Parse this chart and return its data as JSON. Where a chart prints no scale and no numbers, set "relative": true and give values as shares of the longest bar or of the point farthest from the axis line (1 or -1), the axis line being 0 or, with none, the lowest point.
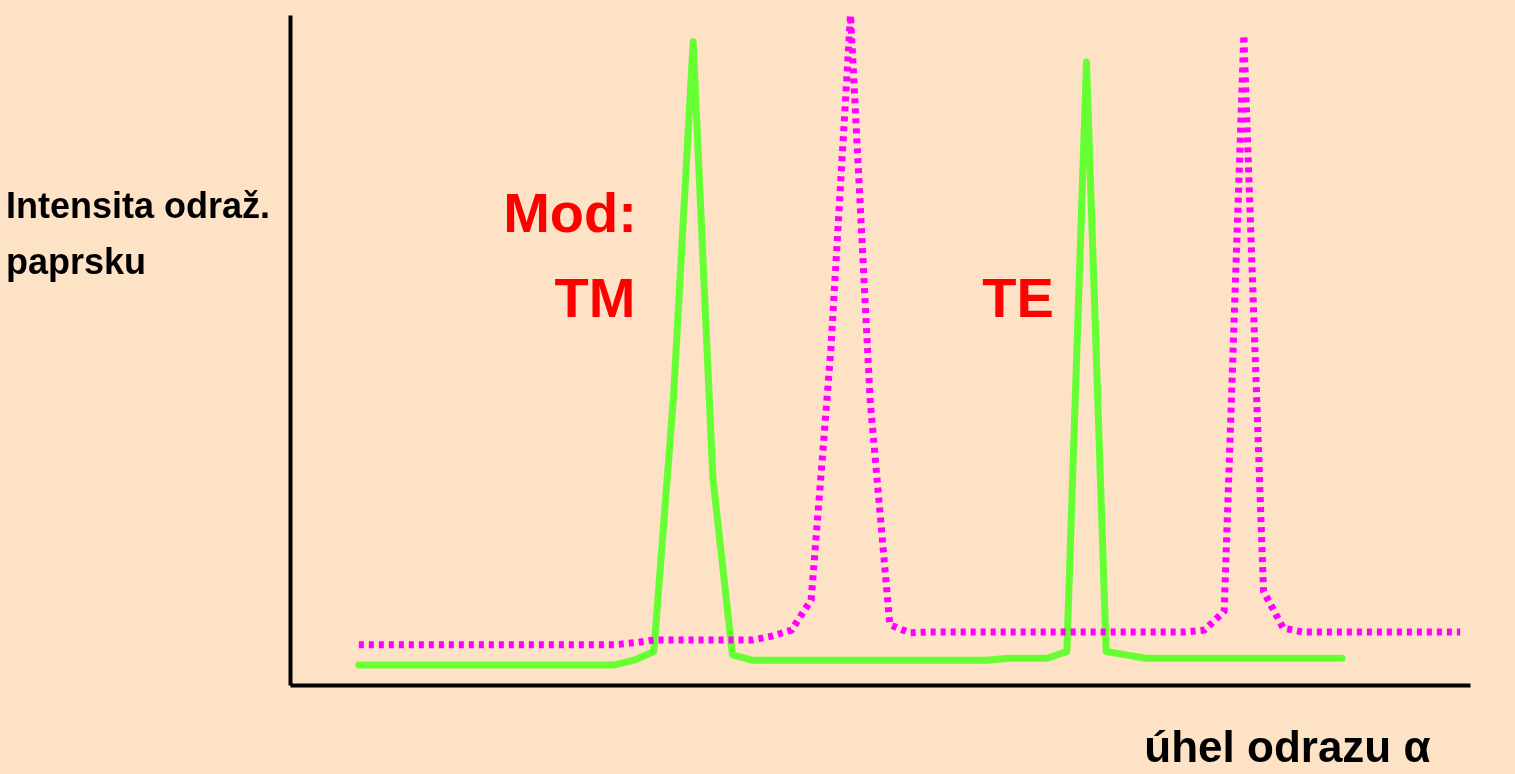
{
  "chart_data": {
    "type": "line",
    "relative": true,
    "xlabel": "úhel odrazu α",
    "ylabel": "Intensita odraž. paprsku",
    "annotations": [
      "Mod:",
      "TM",
      "TE"
    ],
    "categories": [
      null,
      null,
      null,
      null,
      null,
      null,
      null,
      null,
      null,
      null,
      null,
      null,
      null,
      null,
      null,
      null,
      null,
      null,
      null,
      null,
      null,
      null,
      null,
      null,
      null,
      null,
      null,
      null,
      null,
      null,
      null,
      null,
      null,
      null,
      null,
      null,
      null,
      null,
      null,
      null,
      null,
      null,
      null,
      null,
      null,
      null,
      null,
      null,
      null,
      null,
      null,
      null,
      null,
      null,
      null,
      null,
      null,
      null,
      null,
      null
    ],
    "series": [
      {
        "color": "#66ff33",
        "line_style": "solid",
        "values": [
          null,
          null,
          null,
          0.03,
          0.03,
          0.03,
          0.03,
          0.03,
          0.03,
          0.03,
          0.03,
          0.03,
          0.03,
          0.03,
          0.03,
          0.03,
          0.03,
          0.037,
          0.05,
          0.43,
          0.96,
          0.31,
          0.045,
          0.037,
          0.037,
          0.037,
          0.037,
          0.037,
          0.037,
          0.037,
          0.037,
          0.037,
          0.037,
          0.037,
          0.037,
          0.037,
          0.04,
          0.04,
          0.04,
          0.05,
          0.93,
          0.05,
          0.045,
          0.04,
          0.04,
          0.04,
          0.04,
          0.04,
          0.04,
          0.04,
          0.04,
          0.04,
          0.04,
          0.04,
          null,
          null,
          null,
          null,
          null,
          null
        ]
      },
      {
        "color": "#ff00ff",
        "line_style": "dotted",
        "values": [
          null,
          null,
          null,
          0.06,
          0.06,
          0.06,
          0.06,
          0.06,
          0.06,
          0.06,
          0.06,
          0.06,
          0.06,
          0.06,
          0.06,
          0.06,
          0.06,
          0.063,
          0.067,
          0.067,
          0.067,
          0.067,
          0.067,
          0.067,
          0.073,
          0.082,
          0.127,
          0.5,
          1.0,
          0.425,
          0.09,
          0.078,
          0.079,
          0.079,
          0.079,
          0.079,
          0.079,
          0.079,
          0.079,
          0.079,
          0.079,
          0.079,
          0.079,
          0.079,
          0.079,
          0.079,
          0.082,
          0.11,
          0.97,
          0.14,
          0.085,
          0.079,
          0.079,
          0.079,
          0.079,
          0.079,
          0.079,
          0.079,
          0.079,
          0.079
        ]
      }
    ],
    "marker": "none"
  }
}
